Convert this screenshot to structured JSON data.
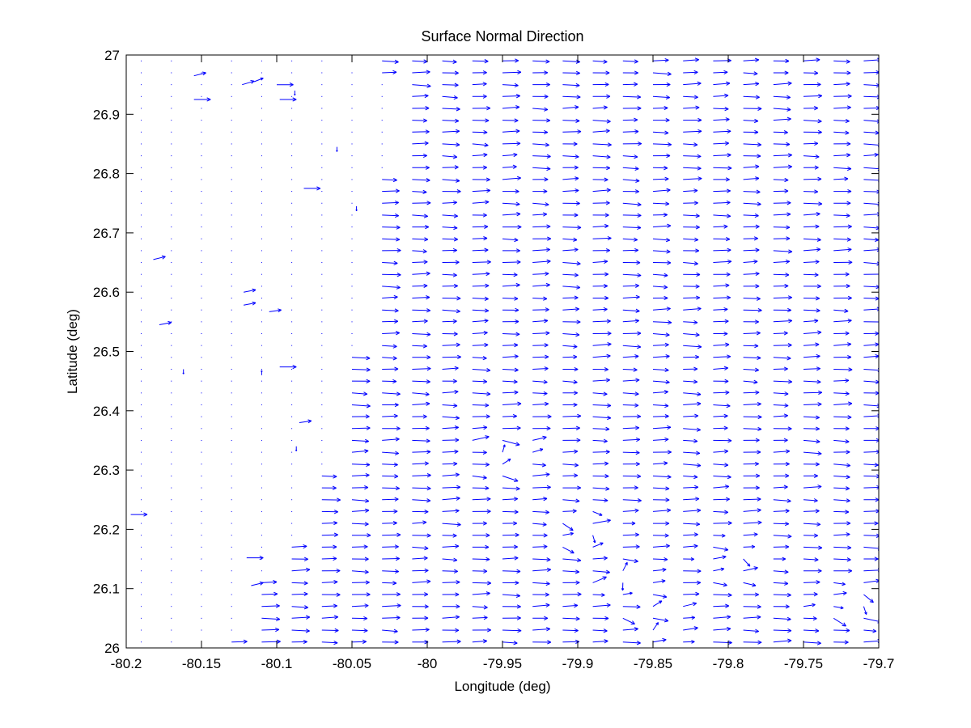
{
  "chart_data": {
    "type": "quiver",
    "title": "Surface Normal Direction",
    "xlabel": "Longitude (deg)",
    "ylabel": "Latitude (deg)",
    "xlim": [
      -80.2,
      -79.7
    ],
    "ylim": [
      26,
      27
    ],
    "x_ticks": [
      -80.2,
      -80.15,
      -80.1,
      -80.05,
      -80.0,
      -79.95,
      -79.9,
      -79.85,
      -79.8,
      -79.75,
      -79.7
    ],
    "x_tick_labels": [
      "-80.2",
      "-80.15",
      "-80.1",
      "-80.05",
      "-80",
      "-79.95",
      "-79.9",
      "-79.85",
      "-79.8",
      "-79.75",
      "-79.7"
    ],
    "y_ticks": [
      26.0,
      26.1,
      26.2,
      26.3,
      26.4,
      26.5,
      26.6,
      26.7,
      26.8,
      26.9,
      27.0
    ],
    "y_tick_labels": [
      "26",
      "26.1",
      "26.2",
      "26.3",
      "26.4",
      "26.5",
      "26.6",
      "26.7",
      "26.8",
      "26.9",
      "27"
    ],
    "grid": false,
    "series_color": "#0000ff",
    "grid_spacing_deg": 0.01,
    "vector_field_approx": {
      "land_region": "near-zero vectors (dots) west of the shoreline",
      "shoreline_longitude_by_latitude": [
        [
          26.02,
          -80.13
        ],
        [
          26.1,
          -80.12
        ],
        [
          26.18,
          -80.09
        ],
        [
          26.22,
          -80.08
        ],
        [
          26.3,
          -80.07
        ],
        [
          26.38,
          -80.06
        ],
        [
          26.5,
          -80.05
        ],
        [
          26.6,
          -80.04
        ],
        [
          26.7,
          -80.04
        ],
        [
          26.8,
          -80.03
        ],
        [
          26.88,
          -80.02
        ],
        [
          26.96,
          -80.03
        ],
        [
          27.0,
          -80.03
        ]
      ],
      "ocean_direction": "predominantly eastward, length about 0.011 deg",
      "noisy_zones": [
        {
          "lon": -79.95,
          "lat": 26.32
        },
        {
          "lon": -79.9,
          "lat": 26.2
        },
        {
          "lon": -79.87,
          "lat": 26.12
        },
        {
          "lon": -79.8,
          "lat": 26.15
        },
        {
          "lon": -79.85,
          "lat": 26.05
        },
        {
          "lon": -79.72,
          "lat": 26.07
        }
      ],
      "isolated_land_vectors": [
        {
          "lon": -80.182,
          "lat": 26.655,
          "u": 0.008,
          "v": 0.005
        },
        {
          "lon": -80.178,
          "lat": 26.545,
          "u": 0.008,
          "v": 0.004
        },
        {
          "lon": -80.162,
          "lat": 26.47,
          "u": 0.0,
          "v": -0.008
        },
        {
          "lon": -80.197,
          "lat": 26.225,
          "u": 0.011,
          "v": 0.0
        },
        {
          "lon": -80.155,
          "lat": 26.925,
          "u": 0.011,
          "v": 0.0
        },
        {
          "lon": -80.155,
          "lat": 26.965,
          "u": 0.008,
          "v": 0.005
        },
        {
          "lon": -80.123,
          "lat": 26.95,
          "u": 0.008,
          "v": 0.006
        },
        {
          "lon": -80.115,
          "lat": 26.955,
          "u": 0.006,
          "v": 0.006
        },
        {
          "lon": -80.122,
          "lat": 26.6,
          "u": 0.008,
          "v": 0.004
        },
        {
          "lon": -80.122,
          "lat": 26.578,
          "u": 0.008,
          "v": 0.004
        },
        {
          "lon": -80.105,
          "lat": 26.567,
          "u": 0.008,
          "v": 0.003
        },
        {
          "lon": -80.11,
          "lat": 26.46,
          "u": 0.0,
          "v": 0.008
        },
        {
          "lon": -80.098,
          "lat": 26.474,
          "u": 0.011,
          "v": 0.0
        },
        {
          "lon": -80.085,
          "lat": 26.38,
          "u": 0.008,
          "v": 0.003
        },
        {
          "lon": -80.087,
          "lat": 26.34,
          "u": 0.0,
          "v": -0.008
        },
        {
          "lon": -80.1,
          "lat": 26.95,
          "u": 0.011,
          "v": 0.0
        },
        {
          "lon": -80.088,
          "lat": 26.94,
          "u": 0.0,
          "v": -0.008
        },
        {
          "lon": -80.098,
          "lat": 26.925,
          "u": 0.011,
          "v": 0.0
        },
        {
          "lon": -80.082,
          "lat": 26.775,
          "u": 0.011,
          "v": 0.0
        },
        {
          "lon": -80.06,
          "lat": 26.845,
          "u": 0.0,
          "v": -0.008
        },
        {
          "lon": -80.047,
          "lat": 26.745,
          "u": 0.0,
          "v": -0.008
        },
        {
          "lon": -80.12,
          "lat": 26.152,
          "u": 0.011,
          "v": 0.0
        },
        {
          "lon": -80.117,
          "lat": 26.105,
          "u": 0.008,
          "v": 0.005
        }
      ]
    }
  }
}
